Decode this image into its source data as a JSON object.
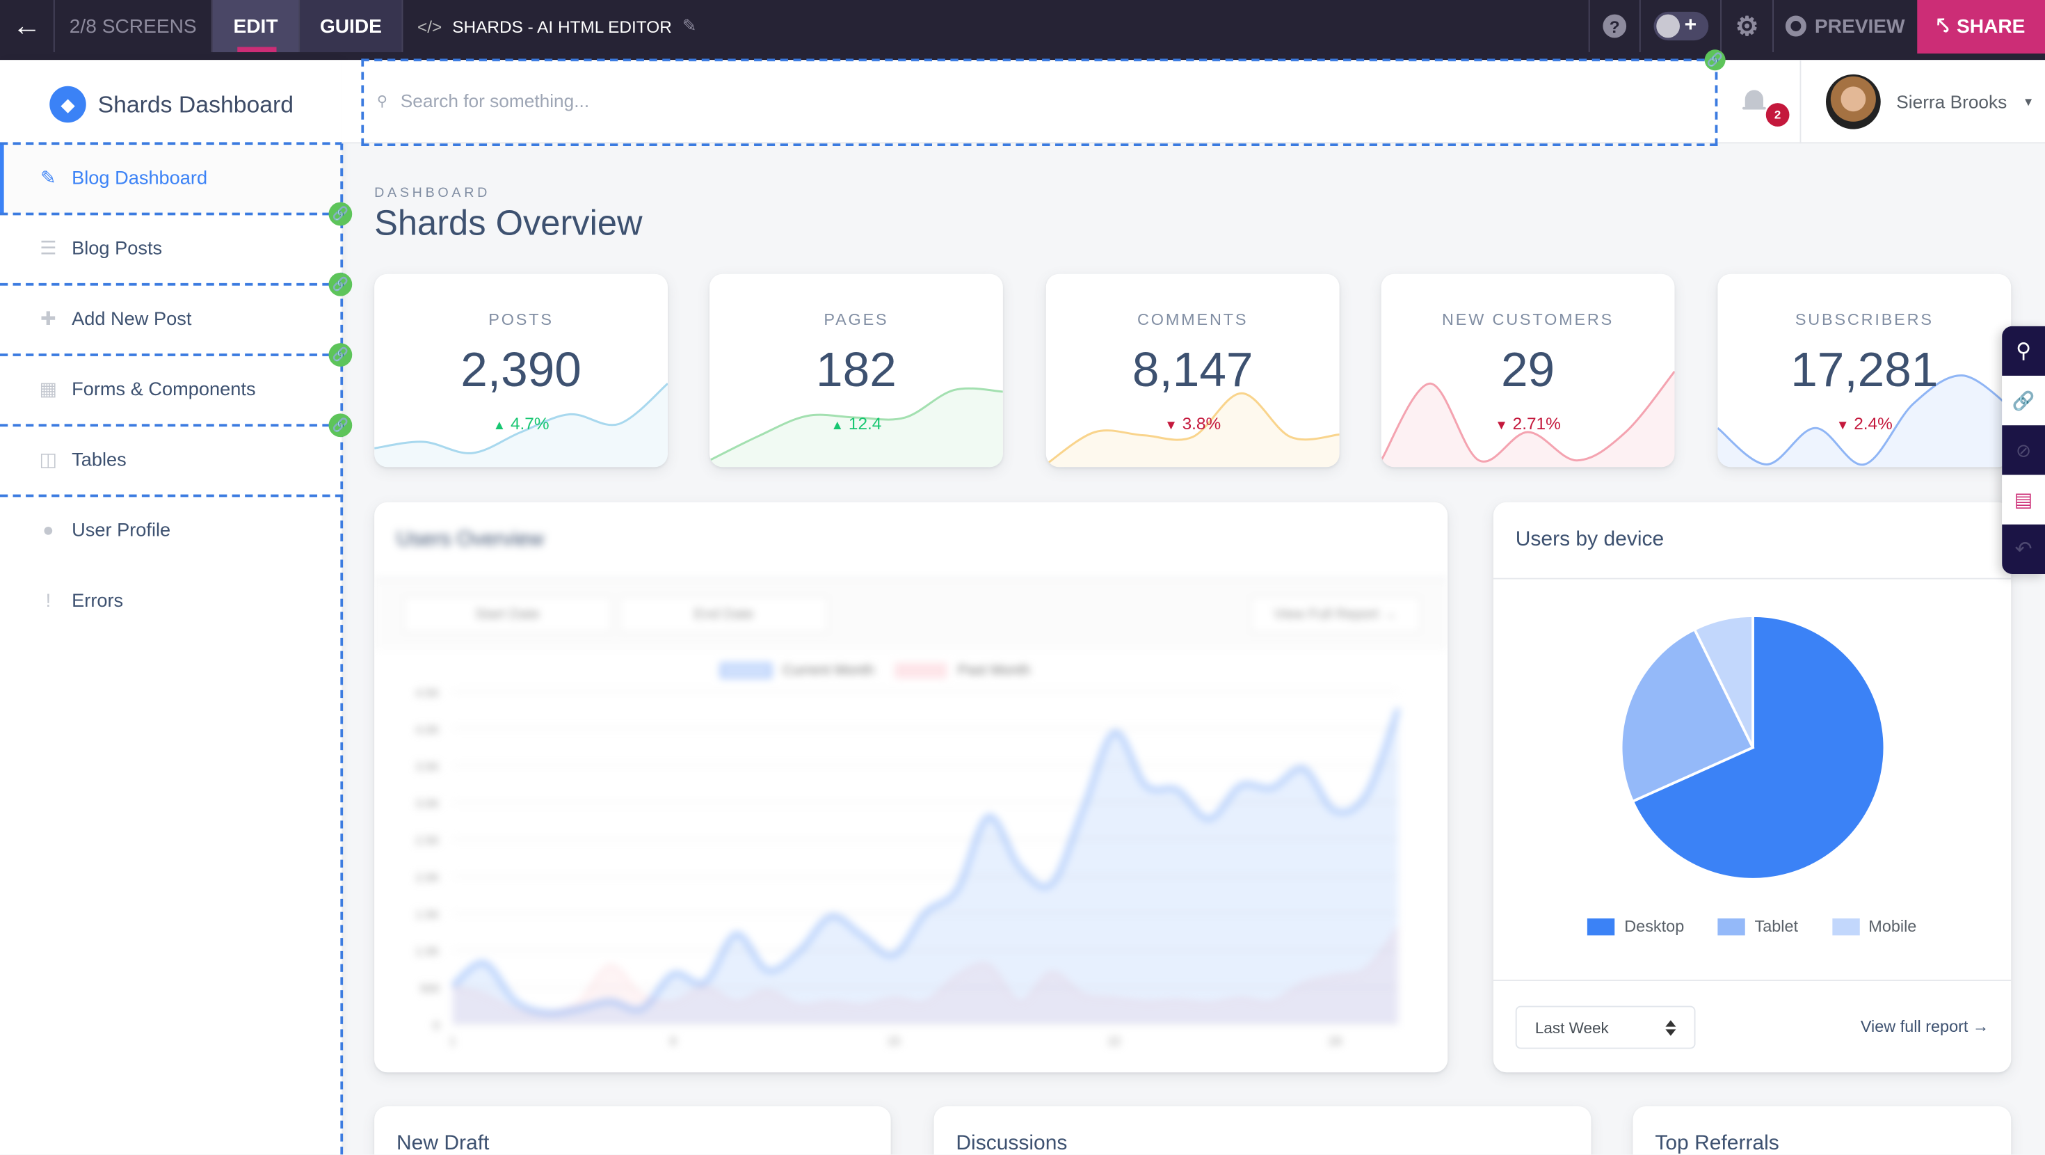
{
  "topbar": {
    "screens": "2/8 SCREENS",
    "edit": "EDIT",
    "guide": "GUIDE",
    "project_title": "SHARDS - AI HTML EDITOR",
    "preview": "PREVIEW",
    "share": "SHARE",
    "accent": "#cc2d76"
  },
  "sidebar": {
    "brand": "Shards Dashboard",
    "items": [
      {
        "label": "Blog Dashboard",
        "icon": "pencil-icon",
        "active": true
      },
      {
        "label": "Blog Posts",
        "icon": "list-icon"
      },
      {
        "label": "Add New Post",
        "icon": "note-add-icon"
      },
      {
        "label": "Forms & Components",
        "icon": "grid-icon"
      },
      {
        "label": "Tables",
        "icon": "table-icon"
      },
      {
        "label": "User Profile",
        "icon": "person-icon"
      },
      {
        "label": "Errors",
        "icon": "error-icon"
      }
    ]
  },
  "header": {
    "search_placeholder": "Search for something...",
    "notifications": "2",
    "user_name": "Sierra Brooks"
  },
  "page": {
    "subtitle": "DASHBOARD",
    "title": "Shards Overview"
  },
  "stats": [
    {
      "label": "POSTS",
      "value": "2,390",
      "delta": "4.7%",
      "trend": "up",
      "color": "#a8d8ee",
      "spark": [
        20,
        28,
        14,
        40,
        62,
        50,
        100
      ]
    },
    {
      "label": "PAGES",
      "value": "182",
      "delta": "12.4",
      "trend": "up",
      "color": "#a3e0b0",
      "spark": [
        5,
        35,
        60,
        58,
        58,
        92,
        90
      ]
    },
    {
      "label": "COMMENTS",
      "value": "8,147",
      "delta": "3.8%",
      "trend": "down",
      "color": "#f9d48c",
      "spark": [
        0,
        40,
        36,
        34,
        88,
        34,
        37
      ]
    },
    {
      "label": "NEW CUSTOMERS",
      "value": "29",
      "delta": "2.71%",
      "trend": "down",
      "color": "#f4a3b0",
      "spark": [
        5,
        100,
        5,
        40,
        5,
        40,
        115
      ]
    },
    {
      "label": "SUBSCRIBERS",
      "value": "17,281",
      "delta": "2.4%",
      "trend": "down",
      "color": "#8fb5f5",
      "spark": [
        45,
        0,
        45,
        0,
        75,
        110,
        70
      ]
    }
  ],
  "users_overview": {
    "title": "Users Overview",
    "start_date": "Start Date",
    "end_date": "End Date",
    "view_report": "View Full Report →",
    "chart_data": {
      "type": "area",
      "x": [
        1,
        2,
        3,
        4,
        5,
        6,
        7,
        8,
        9,
        10,
        11,
        12,
        13,
        14,
        15,
        16,
        17,
        18,
        19,
        20,
        21,
        22,
        23,
        24,
        25,
        26,
        27,
        28,
        29,
        30,
        31
      ],
      "xticks": [
        "1",
        "8",
        "15",
        "22",
        "29"
      ],
      "yticks": [
        "0",
        "500",
        "1.0K",
        "1.5K",
        "2.0K",
        "2.5K",
        "3.0K",
        "3.5K",
        "4.0K",
        "4.5K"
      ],
      "ylim": [
        0,
        4500
      ],
      "series": [
        {
          "name": "Current Month",
          "color": "#3b82f6",
          "values": [
            520,
            830,
            310,
            155,
            210,
            310,
            210,
            680,
            570,
            1220,
            730,
            990,
            1460,
            1200,
            940,
            1510,
            1820,
            2810,
            2130,
            1900,
            2910,
            3950,
            3230,
            3170,
            2780,
            3230,
            3200,
            3460,
            2890,
            3120,
            4270
          ]
        },
        {
          "name": "Past Month",
          "color": "#f4a3b0",
          "values": [
            500,
            400,
            200,
            150,
            300,
            800,
            400,
            300,
            500,
            300,
            450,
            250,
            300,
            250,
            350,
            300,
            650,
            800,
            300,
            700,
            400,
            350,
            300,
            320,
            280,
            350,
            300,
            550,
            650,
            750,
            1300
          ]
        }
      ]
    }
  },
  "users_by_device": {
    "title": "Users by device",
    "chart_data": {
      "type": "pie",
      "categories": [
        "Desktop",
        "Tablet",
        "Mobile"
      ],
      "values": [
        68.3,
        24.4,
        7.3
      ],
      "colors": [
        "#3b82f6",
        "#94b9f9",
        "#c2d7fc"
      ],
      "legend": "bottom"
    },
    "range": "Last Week",
    "view_report": "View full report →"
  },
  "bottom_cards": [
    "New Draft",
    "Discussions",
    "Top Referrals"
  ]
}
